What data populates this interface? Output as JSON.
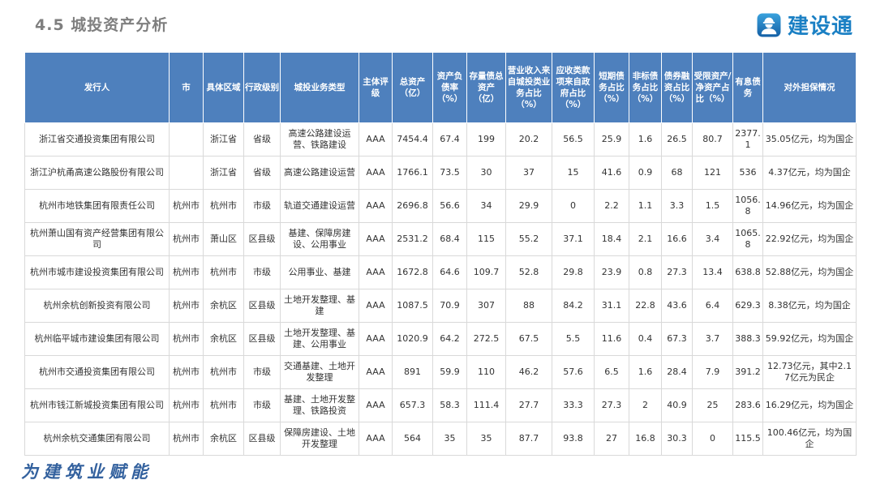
{
  "page": {
    "title": "4.5 城投资产分析",
    "footer": "为建筑业赋能"
  },
  "logo": {
    "text": "建设通",
    "icon": "construction-worker-icon"
  },
  "colors": {
    "header_bg": "#4e80bd",
    "title_gray": "#7f7f7f",
    "logo_blue": "#1b80c4",
    "footer_blue": "#33619e",
    "body_border": "#d9d9d9"
  },
  "table": {
    "headers": [
      "发行人",
      "市",
      "具体区域",
      "行政级别",
      "城投业务类型",
      "主体评级",
      "总资产（亿）",
      "资产负债率（%）",
      "存量债总资产（亿）",
      "营业收入来自城投类业务占比（%）",
      "应收类款项来自政府占比（%）",
      "短期债务占比（%）",
      "非标债务占比（%）",
      "债券融资占比（%）",
      "受限资产/净资产占比（%）",
      "有息债务",
      "对外担保情况"
    ],
    "rows": [
      [
        "浙江省交通投资集团有限公司",
        "",
        "浙江省",
        "省级",
        "高速公路建设运营、铁路建设",
        "AAA",
        "7454.4",
        "67.4",
        "199",
        "20.2",
        "56.5",
        "25.9",
        "1.6",
        "26.5",
        "80.7",
        "2377.1",
        "35.05亿元，均为国企"
      ],
      [
        "浙江沪杭甬高速公路股份有限公司",
        "",
        "浙江省",
        "省级",
        "高速公路建设运营",
        "AAA",
        "1766.1",
        "73.5",
        "30",
        "37",
        "15",
        "41.6",
        "0.9",
        "68",
        "121",
        "536",
        "4.37亿元，均为国企"
      ],
      [
        "杭州市地铁集团有限责任公司",
        "杭州市",
        "杭州市",
        "市级",
        "轨道交通建设运营",
        "AAA",
        "2696.8",
        "56.6",
        "34",
        "29.9",
        "0",
        "2.2",
        "1.1",
        "3.3",
        "1.5",
        "1056.8",
        "14.96亿元，均为国企"
      ],
      [
        "杭州萧山国有资产经营集团有限公司",
        "杭州市",
        "萧山区",
        "区县级",
        "基建、保障房建设、公用事业",
        "AAA",
        "2531.2",
        "68.4",
        "115",
        "55.2",
        "37.1",
        "18.4",
        "2.1",
        "16.6",
        "3.4",
        "1065.8",
        "22.92亿元，均为国企"
      ],
      [
        "杭州市城市建设投资集团有限公司",
        "杭州市",
        "杭州市",
        "市级",
        "公用事业、基建",
        "AAA",
        "1672.8",
        "64.6",
        "109.7",
        "52.8",
        "29.8",
        "23.9",
        "0.8",
        "27.3",
        "13.4",
        "638.8",
        "52.88亿元，均为国企"
      ],
      [
        "杭州余杭创新投资有限公司",
        "杭州市",
        "余杭区",
        "区县级",
        "土地开发整理、基建",
        "AAA",
        "1087.5",
        "70.9",
        "307",
        "88",
        "84.2",
        "31.1",
        "22.8",
        "43.6",
        "6.4",
        "629.3",
        "8.38亿元，均为国企"
      ],
      [
        "杭州临平城市建设集团有限公司",
        "杭州市",
        "余杭区",
        "区县级",
        "土地开发整理、基建、公用事业",
        "AAA",
        "1020.9",
        "64.2",
        "272.5",
        "67.5",
        "5.5",
        "11.6",
        "0.4",
        "67.3",
        "3.7",
        "388.3",
        "59.92亿元，均为国企"
      ],
      [
        "杭州市交通投资集团有限公司",
        "杭州市",
        "杭州市",
        "市级",
        "交通基建、土地开发整理",
        "AAA",
        "891",
        "59.9",
        "110",
        "46.2",
        "57.6",
        "6.5",
        "1.6",
        "28.4",
        "7.9",
        "391.2",
        "12.73亿元，其中2.17亿元为民企"
      ],
      [
        "杭州市钱江新城投资集团有限公司",
        "杭州市",
        "杭州市",
        "市级",
        "基建、土地开发整理、铁路投资",
        "AAA",
        "657.3",
        "58.3",
        "111.4",
        "27.7",
        "33.3",
        "27.3",
        "2",
        "40.9",
        "25",
        "283.6",
        "16.29亿元，均为国企"
      ],
      [
        "杭州余杭交通集团有限公司",
        "杭州市",
        "余杭区",
        "区县级",
        "保障房建设、土地开发整理",
        "AAA",
        "564",
        "35",
        "35",
        "87.7",
        "93.8",
        "27",
        "16.8",
        "30.3",
        "0",
        "115.5",
        "100.46亿元，均为国企"
      ]
    ]
  }
}
